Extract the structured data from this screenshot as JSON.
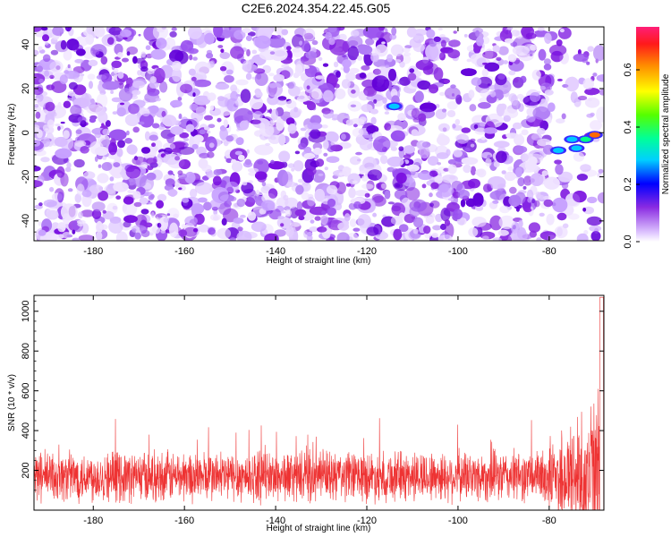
{
  "title": "C2E6.2024.354.22.45.G05",
  "chart_data": [
    {
      "type": "heatmap",
      "xlabel": "Height of straight line (km)",
      "ylabel": "Frequency (Hz)",
      "xlim": [
        -193,
        -68
      ],
      "ylim": [
        -49,
        48
      ],
      "xticks": [
        "-180",
        "-160",
        "-140",
        "-120",
        "-100",
        "-80"
      ],
      "yticks": [
        "-40",
        "-20",
        "0",
        "20",
        "40"
      ],
      "colorbar": {
        "label": "Normalized spectral amplitude",
        "range": [
          0,
          0.75
        ],
        "ticks": [
          "0.0",
          "0.2",
          "0.4",
          "0.6"
        ]
      },
      "hot_spots": [
        {
          "x": -75,
          "y": -3,
          "value": 0.3
        },
        {
          "x": -72,
          "y": -3,
          "value": 0.32
        },
        {
          "x": -70,
          "y": -1,
          "value": 0.58
        },
        {
          "x": -78,
          "y": -8,
          "value": 0.25
        },
        {
          "x": -74,
          "y": -7,
          "value": 0.22
        },
        {
          "x": -114,
          "y": 12,
          "value": 0.22
        }
      ]
    },
    {
      "type": "line",
      "xlabel": "Height of straight line (km)",
      "ylabel": "SNR (10 * v/v)",
      "xlim": [
        -193,
        -68
      ],
      "ylim": [
        0,
        1080
      ],
      "xticks": [
        "-180",
        "-160",
        "-140",
        "-120",
        "-100",
        "-80"
      ],
      "yticks": [
        "200",
        "400",
        "600",
        "800",
        "1000"
      ],
      "color": "#ee3333",
      "baseline_mean": 170,
      "rise_start_x": -82,
      "peak": {
        "x": -68.5,
        "y": 1070
      }
    }
  ]
}
